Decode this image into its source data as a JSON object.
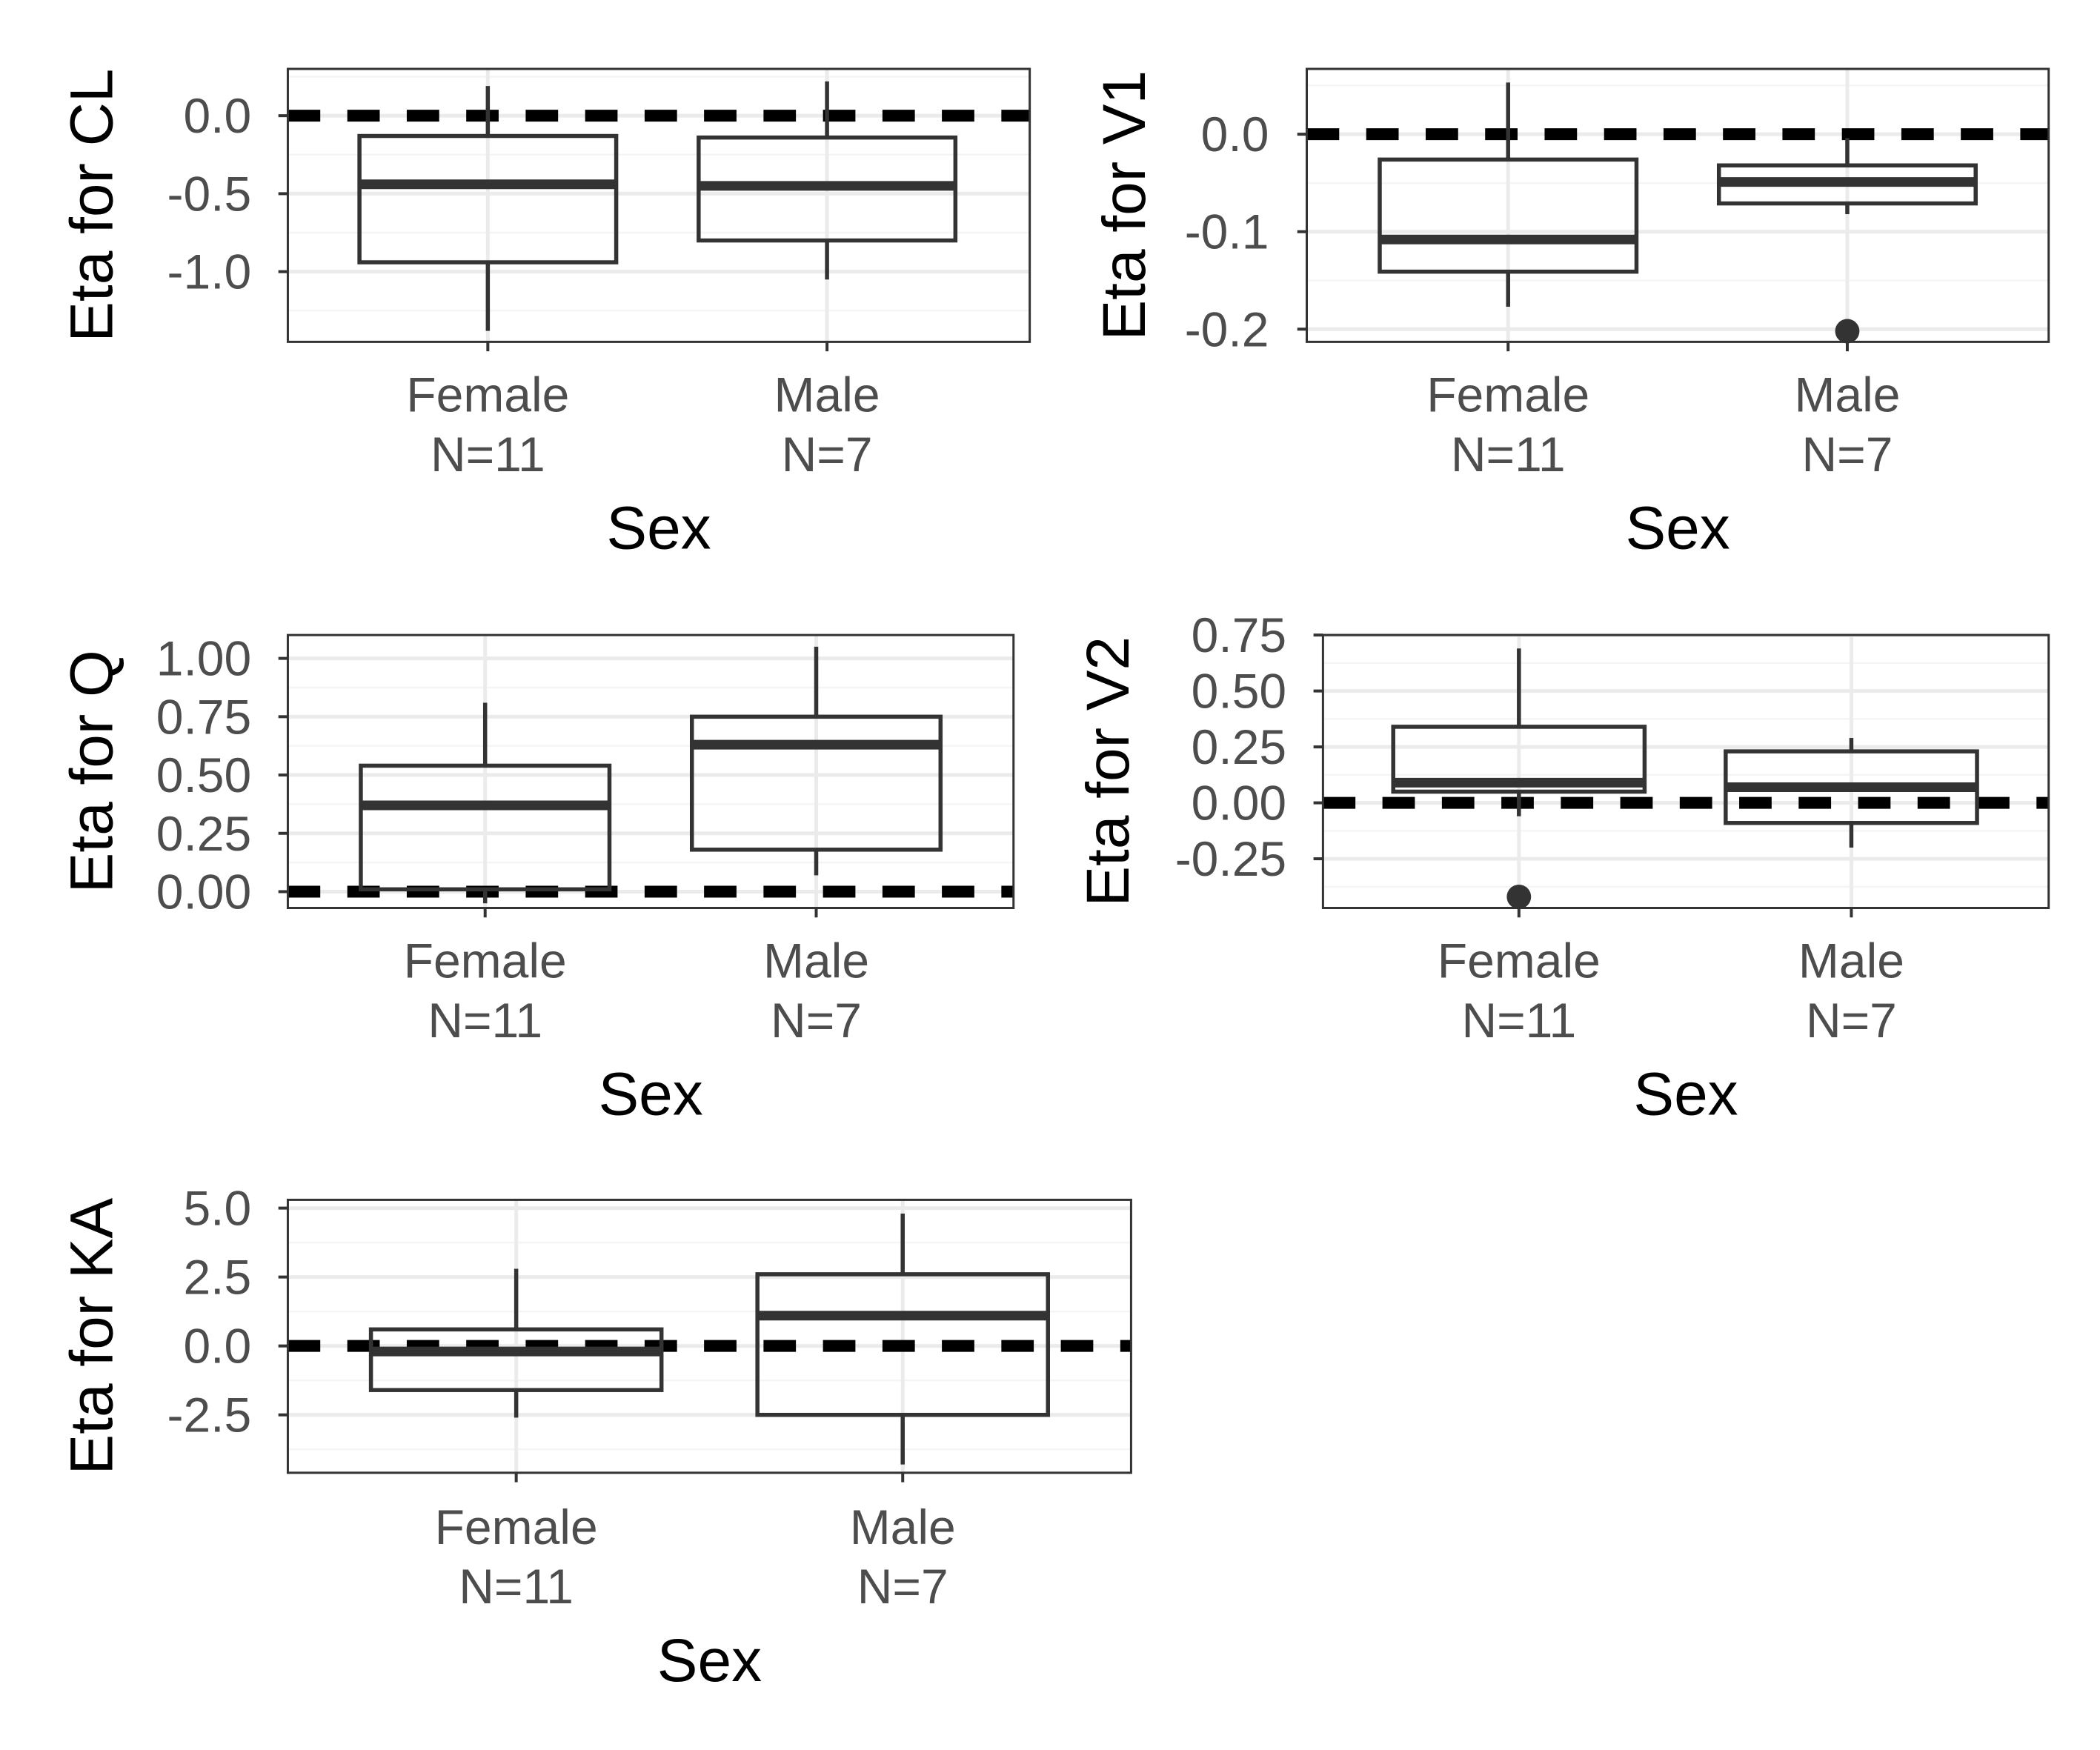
{
  "colors": {
    "background": "#ffffff",
    "panel_border": "#333333",
    "grid_major": "#ebebeb",
    "grid_minor": "#f5f5f5",
    "box_stroke": "#333333",
    "reference_line": "#000000",
    "tick_text": "#4d4d4d",
    "axis_title_text": "#000000"
  },
  "chart_data": [
    {
      "type": "box",
      "xlabel": "Sex",
      "ylabel": "Eta for CL",
      "categories": [
        "Female\nN=11",
        "Male\nN=7"
      ],
      "ylim": [
        -1.45,
        0.3
      ],
      "yticks": [
        0.0,
        -0.5,
        -1.0
      ],
      "ytick_labels": [
        "0.0",
        "-0.5",
        "-1.0"
      ],
      "reference_line": 0,
      "grid": true,
      "boxes": [
        {
          "category": "Female",
          "whisker_low": -1.38,
          "q1": -0.94,
          "median": -0.44,
          "q3": -0.13,
          "whisker_high": 0.19,
          "outliers": []
        },
        {
          "category": "Male",
          "whisker_low": -1.05,
          "q1": -0.8,
          "median": -0.45,
          "q3": -0.14,
          "whisker_high": 0.22,
          "outliers": []
        }
      ]
    },
    {
      "type": "box",
      "xlabel": "Sex",
      "ylabel": "Eta for V1",
      "categories": [
        "Female\nN=11",
        "Male\nN=7"
      ],
      "ylim": [
        -0.213,
        0.067
      ],
      "yticks": [
        0.0,
        -0.1,
        -0.2
      ],
      "ytick_labels": [
        "0.0",
        "-0.1",
        "-0.2"
      ],
      "reference_line": 0,
      "grid": true,
      "boxes": [
        {
          "category": "Female",
          "whisker_low": -0.177,
          "q1": -0.141,
          "median": -0.108,
          "q3": -0.026,
          "whisker_high": 0.053,
          "outliers": []
        },
        {
          "category": "Male",
          "whisker_low": -0.082,
          "q1": -0.071,
          "median": -0.049,
          "q3": -0.032,
          "whisker_high": -0.004,
          "outliers": [
            -0.202
          ]
        }
      ]
    },
    {
      "type": "box",
      "xlabel": "Sex",
      "ylabel": "Eta for Q",
      "categories": [
        "Female\nN=11",
        "Male\nN=7"
      ],
      "ylim": [
        -0.07,
        1.1
      ],
      "yticks": [
        1.0,
        0.75,
        0.5,
        0.25,
        0.0
      ],
      "ytick_labels": [
        "1.00",
        "0.75",
        "0.50",
        "0.25",
        "0.00"
      ],
      "reference_line": 0,
      "grid": true,
      "boxes": [
        {
          "category": "Female",
          "whisker_low": -0.05,
          "q1": 0.01,
          "median": 0.37,
          "q3": 0.54,
          "whisker_high": 0.81,
          "outliers": []
        },
        {
          "category": "Male",
          "whisker_low": 0.07,
          "q1": 0.18,
          "median": 0.63,
          "q3": 0.75,
          "whisker_high": 1.05,
          "outliers": []
        }
      ]
    },
    {
      "type": "box",
      "xlabel": "Sex",
      "ylabel": "Eta for V2",
      "categories": [
        "Female\nN=11",
        "Male\nN=7"
      ],
      "ylim": [
        -0.47,
        0.75
      ],
      "yticks": [
        0.75,
        0.5,
        0.25,
        0.0,
        -0.25
      ],
      "ytick_labels": [
        "0.75",
        "0.50",
        "0.25",
        "0.00",
        "-0.25"
      ],
      "reference_line": 0,
      "grid": true,
      "boxes": [
        {
          "category": "Female",
          "whisker_low": -0.06,
          "q1": 0.05,
          "median": 0.09,
          "q3": 0.34,
          "whisker_high": 0.69,
          "outliers": [
            -0.42
          ]
        },
        {
          "category": "Male",
          "whisker_low": -0.2,
          "q1": -0.09,
          "median": 0.07,
          "q3": 0.23,
          "whisker_high": 0.29,
          "outliers": []
        }
      ]
    },
    {
      "type": "box",
      "xlabel": "Sex",
      "ylabel": "Eta for KA",
      "categories": [
        "Female\nN=11",
        "Male\nN=7"
      ],
      "ylim": [
        -4.6,
        5.3
      ],
      "yticks": [
        5.0,
        2.5,
        0.0,
        -2.5
      ],
      "ytick_labels": [
        "5.0",
        "2.5",
        "0.0",
        "-2.5"
      ],
      "reference_line": 0,
      "grid": true,
      "boxes": [
        {
          "category": "Female",
          "whisker_low": -2.6,
          "q1": -1.6,
          "median": -0.2,
          "q3": 0.6,
          "whisker_high": 2.8,
          "outliers": []
        },
        {
          "category": "Male",
          "whisker_low": -4.3,
          "q1": -2.5,
          "median": 1.1,
          "q3": 2.6,
          "whisker_high": 4.8,
          "outliers": []
        }
      ]
    }
  ]
}
